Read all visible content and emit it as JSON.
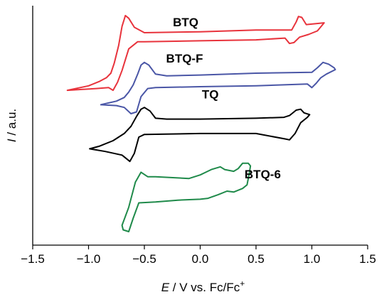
{
  "chart_data": {
    "type": "line",
    "title": "",
    "xlabel": {
      "italic": "E",
      "rest": " / V vs. Fc/Fc",
      "sup": "+"
    },
    "ylabel": {
      "italic": "I",
      "rest": " / a.u."
    },
    "xlim": [
      -1.5,
      1.5
    ],
    "x_ticks": [
      -1.5,
      -1.0,
      -0.5,
      0,
      0.5,
      1.0,
      1.5
    ],
    "x_tick_labels": [
      "−1.5",
      "−1.0",
      "−0.5",
      "0.0",
      "0.5",
      "1.0",
      "1.5"
    ],
    "y_ticks": "none (arbitrary units, curves vertically offset)",
    "grid": false,
    "legend": "none; series labelled directly on the curves",
    "series": [
      {
        "name": "BTQ",
        "color": "#e8333c",
        "label_at": [
          -0.13,
          0.83
        ],
        "points": [
          [
            -1.19,
            0.12
          ],
          [
            -1.0,
            0.17
          ],
          [
            -0.9,
            0.22
          ],
          [
            -0.84,
            0.26
          ],
          [
            -0.8,
            0.31
          ],
          [
            -0.77,
            0.42
          ],
          [
            -0.73,
            0.62
          ],
          [
            -0.7,
            0.83
          ],
          [
            -0.67,
            0.95
          ],
          [
            -0.64,
            0.92
          ],
          [
            -0.59,
            0.82
          ],
          [
            -0.5,
            0.76
          ],
          [
            0.0,
            0.77
          ],
          [
            0.5,
            0.79
          ],
          [
            0.82,
            0.79
          ],
          [
            0.86,
            0.88
          ],
          [
            0.88,
            0.94
          ],
          [
            0.91,
            0.93
          ],
          [
            0.95,
            0.85
          ],
          [
            1.11,
            0.87
          ],
          [
            1.05,
            0.78
          ],
          [
            0.97,
            0.74
          ],
          [
            0.89,
            0.71
          ],
          [
            0.84,
            0.65
          ],
          [
            0.8,
            0.64
          ],
          [
            0.76,
            0.7
          ],
          [
            0.5,
            0.68
          ],
          [
            0.0,
            0.67
          ],
          [
            -0.5,
            0.66
          ],
          [
            -0.56,
            0.66
          ],
          [
            -0.64,
            0.58
          ],
          [
            -0.7,
            0.34
          ],
          [
            -0.74,
            0.21
          ],
          [
            -0.78,
            0.12
          ],
          [
            -0.82,
            0.15
          ],
          [
            -0.93,
            0.14
          ],
          [
            -1.05,
            0.13
          ],
          [
            -1.19,
            0.12
          ]
        ]
      },
      {
        "name": "BTQ-F",
        "color": "#4a56a6",
        "label_at": [
          -0.14,
          0.43
        ],
        "points": [
          [
            -0.89,
            -0.04
          ],
          [
            -0.75,
            0.0
          ],
          [
            -0.68,
            0.04
          ],
          [
            -0.64,
            0.1
          ],
          [
            -0.6,
            0.18
          ],
          [
            -0.56,
            0.3
          ],
          [
            -0.53,
            0.4
          ],
          [
            -0.5,
            0.43
          ],
          [
            -0.46,
            0.4
          ],
          [
            -0.4,
            0.3
          ],
          [
            -0.3,
            0.28
          ],
          [
            0.0,
            0.29
          ],
          [
            0.5,
            0.31
          ],
          [
            1.0,
            0.32
          ],
          [
            1.05,
            0.37
          ],
          [
            1.1,
            0.43
          ],
          [
            1.15,
            0.41
          ],
          [
            1.2,
            0.37
          ],
          [
            1.21,
            0.35
          ],
          [
            1.13,
            0.3
          ],
          [
            1.08,
            0.26
          ],
          [
            1.04,
            0.2
          ],
          [
            1.0,
            0.15
          ],
          [
            0.96,
            0.19
          ],
          [
            0.5,
            0.17
          ],
          [
            0.0,
            0.16
          ],
          [
            -0.4,
            0.15
          ],
          [
            -0.47,
            0.14
          ],
          [
            -0.53,
            0.05
          ],
          [
            -0.57,
            -0.12
          ],
          [
            -0.62,
            -0.14
          ],
          [
            -0.68,
            -0.07
          ],
          [
            -0.75,
            -0.05
          ],
          [
            -0.89,
            -0.04
          ]
        ]
      },
      {
        "name": "TQ",
        "color": "#000000",
        "label_at": [
          0.09,
          0.03
        ],
        "points": [
          [
            -0.99,
            -0.53
          ],
          [
            -0.9,
            -0.5
          ],
          [
            -0.78,
            -0.44
          ],
          [
            -0.68,
            -0.36
          ],
          [
            -0.62,
            -0.28
          ],
          [
            -0.57,
            -0.17
          ],
          [
            -0.53,
            -0.09
          ],
          [
            -0.5,
            -0.07
          ],
          [
            -0.45,
            -0.11
          ],
          [
            -0.4,
            -0.19
          ],
          [
            -0.3,
            -0.2
          ],
          [
            0.0,
            -0.2
          ],
          [
            0.5,
            -0.19
          ],
          [
            0.75,
            -0.18
          ],
          [
            0.8,
            -0.16
          ],
          [
            0.86,
            -0.1
          ],
          [
            0.9,
            -0.09
          ],
          [
            0.93,
            -0.13
          ],
          [
            0.98,
            -0.15
          ],
          [
            0.96,
            -0.18
          ],
          [
            0.9,
            -0.24
          ],
          [
            0.85,
            -0.36
          ],
          [
            0.8,
            -0.43
          ],
          [
            0.76,
            -0.42
          ],
          [
            0.5,
            -0.36
          ],
          [
            0.0,
            -0.36
          ],
          [
            -0.5,
            -0.37
          ],
          [
            -0.55,
            -0.4
          ],
          [
            -0.59,
            -0.58
          ],
          [
            -0.63,
            -0.67
          ],
          [
            -0.7,
            -0.6
          ],
          [
            -0.85,
            -0.56
          ],
          [
            -0.99,
            -0.53
          ]
        ]
      },
      {
        "name": "BTQ-6",
        "color": "#1f8a4a",
        "label_at": [
          0.56,
          -0.86
        ],
        "points": [
          [
            -0.7,
            -1.38
          ],
          [
            -0.64,
            -1.18
          ],
          [
            -0.58,
            -0.9
          ],
          [
            -0.53,
            -0.79
          ],
          [
            -0.47,
            -0.84
          ],
          [
            -0.4,
            -0.84
          ],
          [
            -0.1,
            -0.86
          ],
          [
            0.0,
            -0.82
          ],
          [
            0.05,
            -0.79
          ],
          [
            0.1,
            -0.76
          ],
          [
            0.18,
            -0.73
          ],
          [
            0.22,
            -0.76
          ],
          [
            0.3,
            -0.78
          ],
          [
            0.34,
            -0.75
          ],
          [
            0.38,
            -0.69
          ],
          [
            0.43,
            -0.69
          ],
          [
            0.45,
            -0.72
          ],
          [
            0.44,
            -0.8
          ],
          [
            0.42,
            -0.93
          ],
          [
            0.38,
            -0.97
          ],
          [
            0.3,
            -1.01
          ],
          [
            0.24,
            -1.0
          ],
          [
            0.16,
            -1.04
          ],
          [
            0.07,
            -1.08
          ],
          [
            0.0,
            -1.09
          ],
          [
            -0.2,
            -1.1
          ],
          [
            -0.4,
            -1.12
          ],
          [
            -0.55,
            -1.13
          ],
          [
            -0.6,
            -1.3
          ],
          [
            -0.64,
            -1.45
          ],
          [
            -0.69,
            -1.43
          ],
          [
            -0.7,
            -1.38
          ]
        ]
      }
    ]
  }
}
